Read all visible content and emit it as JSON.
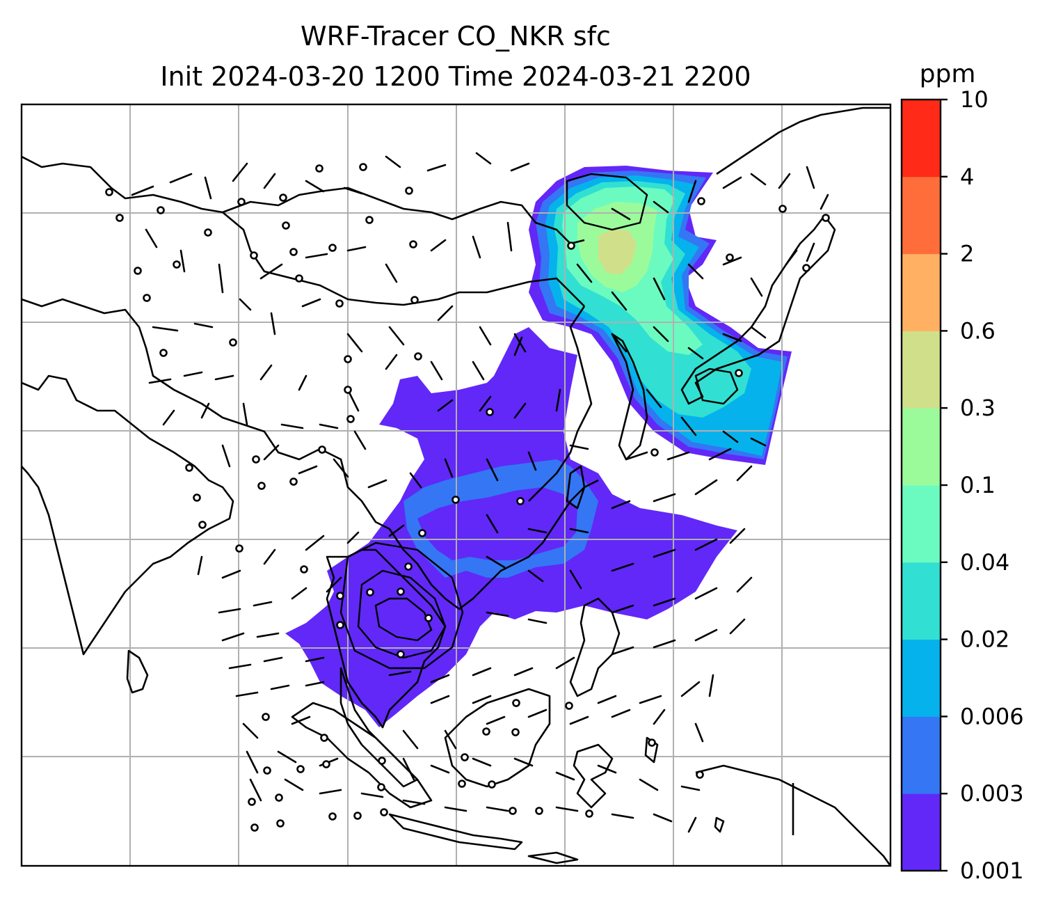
{
  "title": {
    "line1": "WRF-Tracer CO_NKR sfc",
    "line2": "Init 2024-03-20 1200 Time 2024-03-21 2200"
  },
  "colorbar": {
    "unit": "ppm",
    "levels": [
      "0.001",
      "0.003",
      "0.006",
      "0.02",
      "0.04",
      "0.1",
      "0.3",
      "0.6",
      "2",
      "4",
      "10"
    ],
    "colors": [
      "#6128f8",
      "#3476f4",
      "#05b2ec",
      "#31e0d2",
      "#6bfbc0",
      "#9bfb9b",
      "#d0e08a",
      "#ffb062",
      "#ff6e3a",
      "#ff2a18"
    ]
  },
  "map": {
    "gridlines": true,
    "coastline_color": "#000000",
    "grid_color": "#b0b0b0",
    "wind_barb_color": "#000000"
  }
}
